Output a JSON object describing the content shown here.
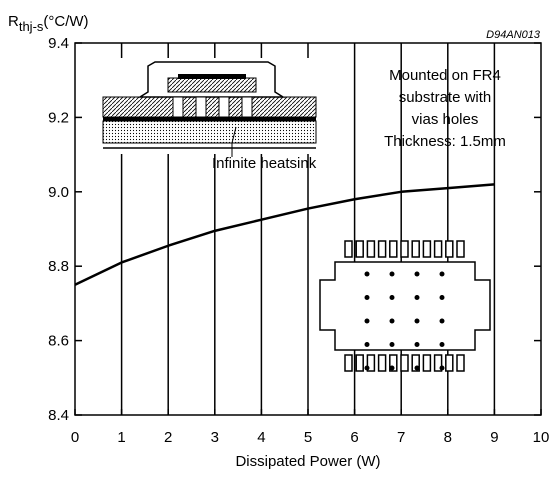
{
  "chart_data": {
    "type": "line",
    "code": "D94AN013",
    "ylabel": {
      "main": "R",
      "sub": "thj-s",
      "unit": "(°C/W)"
    },
    "xlabel": "Dissipated Power (W)",
    "annotations": [
      "Mounted on FR4",
      "substrate with",
      "vias holes",
      "Thickness: 1.5mm"
    ],
    "heatsink_label": "Infinite heatsink",
    "x": [
      0,
      1,
      2,
      3,
      4,
      5,
      6,
      7,
      8,
      9
    ],
    "series": [
      {
        "name": "Rthj-s",
        "color": "#000000",
        "values": [
          8.75,
          8.81,
          8.855,
          8.895,
          8.925,
          8.955,
          8.98,
          9.0,
          9.01,
          9.02
        ]
      }
    ],
    "xlim": [
      0,
      10
    ],
    "xticks": [
      0,
      1,
      2,
      3,
      4,
      5,
      6,
      7,
      8,
      9,
      10
    ],
    "ylim": [
      8.4,
      9.4
    ],
    "yticks": [
      8.4,
      8.6,
      8.8,
      {
        "value": 9,
        "label": "9.0"
      },
      9.2,
      9.4
    ],
    "grid": "x"
  }
}
